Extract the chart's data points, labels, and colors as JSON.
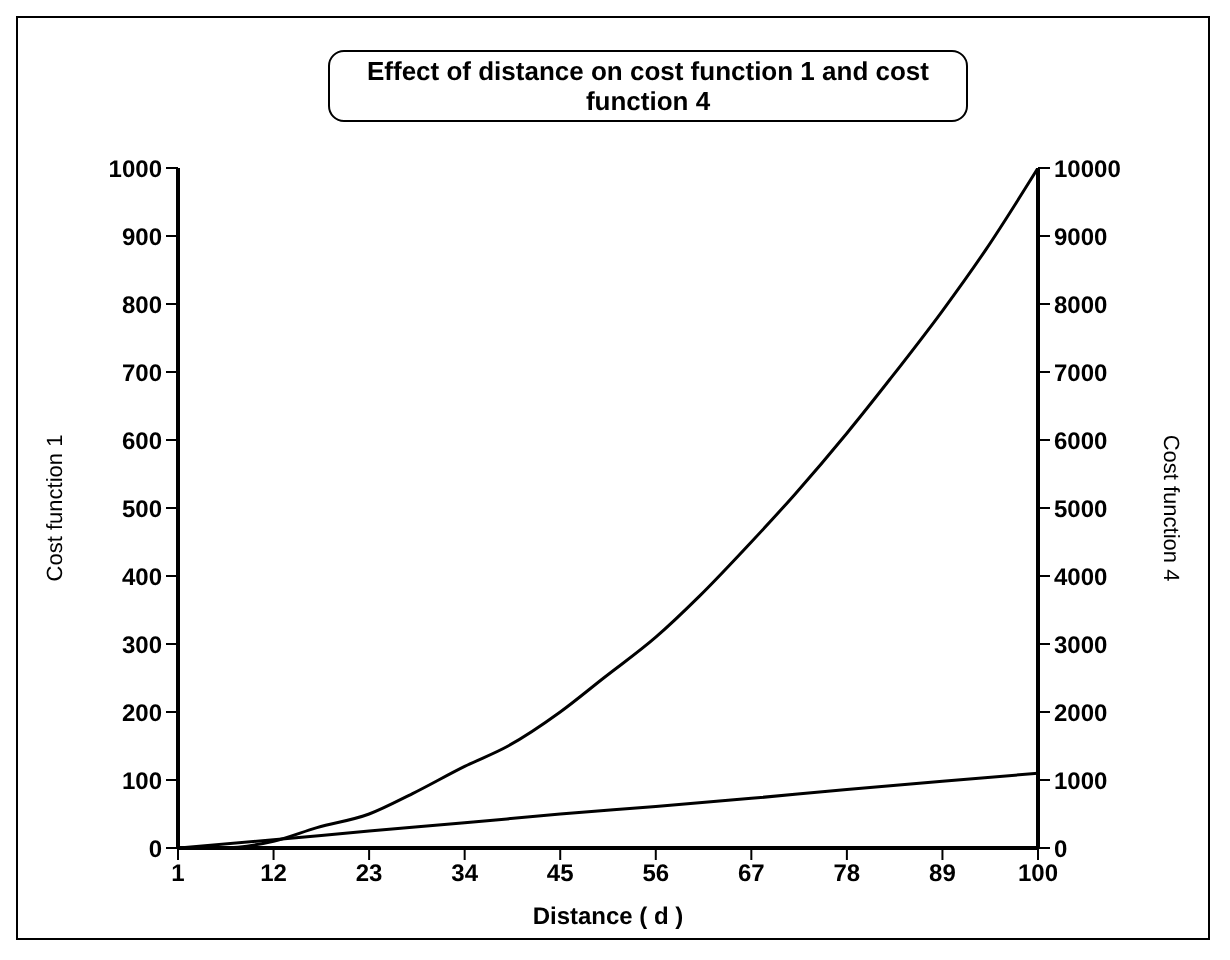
{
  "chart_data": {
    "type": "line",
    "title": "Effect of distance on cost function 1 and cost function 4",
    "xlabel": "Distance ( d )",
    "ylabel": "Cost function 1",
    "y2label": "Cost function 4",
    "xlim": [
      1,
      100
    ],
    "xticks": [
      1,
      12,
      23,
      34,
      45,
      56,
      67,
      78,
      89,
      100
    ],
    "ylim": [
      0,
      1000
    ],
    "yticks": [
      0,
      100,
      200,
      300,
      400,
      500,
      600,
      700,
      800,
      900,
      1000
    ],
    "y2lim": [
      0,
      10000
    ],
    "y2ticks": [
      0,
      1000,
      2000,
      3000,
      4000,
      5000,
      6000,
      7000,
      8000,
      9000,
      10000
    ],
    "marker": "none",
    "line_style": "solid",
    "series": [
      {
        "color": "#000000",
        "x": [
          1,
          12,
          23,
          34,
          45,
          56,
          67,
          78,
          89,
          100
        ],
        "values": [
          0,
          12,
          25,
          37,
          50,
          61,
          73,
          86,
          98,
          110
        ]
      },
      {
        "color": "#000000",
        "axis": "y2",
        "x": [
          1,
          6,
          12,
          17,
          23,
          28,
          34,
          39,
          45,
          50,
          56,
          61,
          67,
          72,
          78,
          83,
          89,
          94,
          100
        ],
        "values": [
          0,
          0,
          100,
          300,
          500,
          800,
          1200,
          1500,
          2000,
          2500,
          3100,
          3700,
          4500,
          5200,
          6100,
          6900,
          7900,
          8800,
          10000
        ]
      }
    ]
  }
}
